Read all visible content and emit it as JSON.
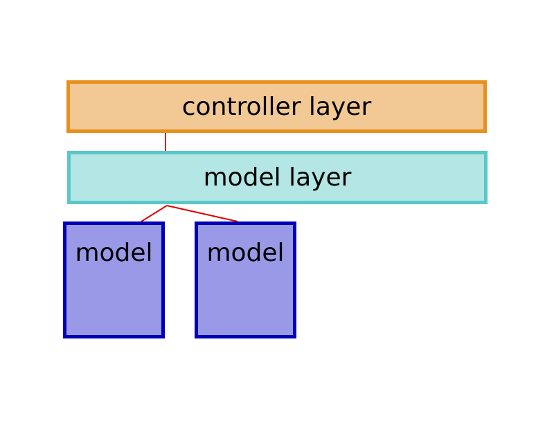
{
  "diagram": {
    "controller_layer": {
      "label": "controller layer"
    },
    "model_layer": {
      "label": "model layer"
    },
    "models": [
      {
        "label": "model"
      },
      {
        "label": "model"
      }
    ]
  },
  "colors": {
    "controller_fill": "#f2c994",
    "controller_border": "#e8901c",
    "model_layer_fill": "#b3e6e4",
    "model_layer_border": "#5ac8c8",
    "model_fill": "#9999e8",
    "model_border": "#0000b8",
    "connector": "#e00000"
  }
}
